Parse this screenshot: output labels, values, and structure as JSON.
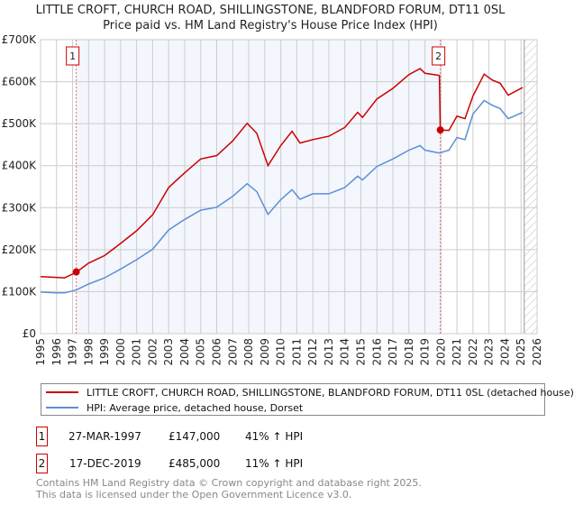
{
  "chart_data": {
    "type": "line",
    "title": "LITTLE CROFT, CHURCH ROAD, SHILLINGSTONE, BLANDFORD FORUM, DT11 0SL",
    "subtitle": "Price paid vs. HM Land Registry's House Price Index (HPI)",
    "xlim": [
      1995,
      2026
    ],
    "ylim": [
      0,
      700000
    ],
    "x_ticks": [
      "1995",
      "1996",
      "1997",
      "1998",
      "1999",
      "2000",
      "2001",
      "2002",
      "2003",
      "2004",
      "2005",
      "2006",
      "2007",
      "2008",
      "2009",
      "2010",
      "2011",
      "2012",
      "2013",
      "2014",
      "2015",
      "2016",
      "2017",
      "2018",
      "2019",
      "2020",
      "2021",
      "2022",
      "2023",
      "2024",
      "2025",
      "2026"
    ],
    "y_ticks": [
      {
        "v": 0,
        "label": "£0"
      },
      {
        "v": 100000,
        "label": "£100K"
      },
      {
        "v": 200000,
        "label": "£200K"
      },
      {
        "v": 300000,
        "label": "£300K"
      },
      {
        "v": 400000,
        "label": "£400K"
      },
      {
        "v": 500000,
        "label": "£500K"
      },
      {
        "v": 600000,
        "label": "£600K"
      },
      {
        "v": 700000,
        "label": "£700K"
      }
    ],
    "grid": true,
    "shaded_period": [
      1997.23,
      2019.96
    ],
    "forecast_hatch_from": 2025.2,
    "series": [
      {
        "name": "LITTLE CROFT, CHURCH ROAD, SHILLINGSTONE, BLANDFORD FORUM, DT11 0SL (detached house)",
        "color": "#cc0000",
        "x": [
          1995,
          1996,
          1996.5,
          1997.23,
          1998,
          1999,
          2000,
          2001,
          2002,
          2003,
          2004,
          2005,
          2006,
          2007,
          2007.9,
          2008.5,
          2009.2,
          2010,
          2010.7,
          2011.2,
          2012,
          2013,
          2014,
          2014.8,
          2015.1,
          2016,
          2017,
          2018,
          2018.7,
          2019,
          2019.9,
          2019.96,
          2020.5,
          2021,
          2021.5,
          2022,
          2022.7,
          2023.2,
          2023.7,
          2024.2,
          2025.1
        ],
        "y": [
          136000,
          134000,
          133000,
          146000,
          168000,
          186000,
          215000,
          245000,
          283000,
          348000,
          383000,
          416000,
          424000,
          459000,
          501000,
          477000,
          400000,
          448000,
          482000,
          454000,
          462000,
          470000,
          491000,
          527000,
          515000,
          559000,
          584000,
          617000,
          631000,
          620000,
          615000,
          485000,
          484000,
          518000,
          512000,
          566000,
          618000,
          604000,
          596000,
          568000,
          586000
        ]
      },
      {
        "name": "HPI: Average price, detached house, Dorset",
        "color": "#5b8fd4",
        "x": [
          1995,
          1996,
          1996.5,
          1997.23,
          1998,
          1999,
          2000,
          2001,
          2002,
          2003,
          2004,
          2005,
          2006,
          2007,
          2007.9,
          2008.5,
          2009.2,
          2010,
          2010.7,
          2011.2,
          2012,
          2013,
          2014,
          2014.8,
          2015.1,
          2016,
          2017,
          2018,
          2018.7,
          2019,
          2019.9,
          2020.5,
          2021,
          2021.5,
          2022,
          2022.7,
          2023.2,
          2023.7,
          2024.2,
          2025.1
        ],
        "y": [
          99000,
          97000,
          97000,
          104000,
          118000,
          133000,
          154000,
          176000,
          201000,
          247000,
          272000,
          294000,
          301000,
          327000,
          357000,
          338000,
          284000,
          319000,
          343000,
          320000,
          333000,
          333000,
          348000,
          375000,
          366000,
          398000,
          416000,
          437000,
          448000,
          437000,
          430000,
          437000,
          467000,
          462000,
          523000,
          555000,
          544000,
          536000,
          512000,
          527000
        ]
      }
    ],
    "annotations": [
      {
        "label": "1",
        "x": 1997.23,
        "y": 147000
      },
      {
        "label": "2",
        "x": 2019.96,
        "y": 485000
      }
    ]
  },
  "legend": {
    "property": "LITTLE CROFT, CHURCH ROAD, SHILLINGSTONE, BLANDFORD FORUM, DT11 0SL (detached house)",
    "hpi": "HPI: Average price, detached house, Dorset"
  },
  "transactions": [
    {
      "num": "1",
      "date": "27-MAR-1997",
      "price": "£147,000",
      "hpi": "41% ↑ HPI"
    },
    {
      "num": "2",
      "date": "17-DEC-2019",
      "price": "£485,000",
      "hpi": "11% ↑ HPI"
    }
  ],
  "footer": {
    "line1": "Contains HM Land Registry data © Crown copyright and database right 2025.",
    "line2": "This data is licensed under the Open Government Licence v3.0."
  }
}
